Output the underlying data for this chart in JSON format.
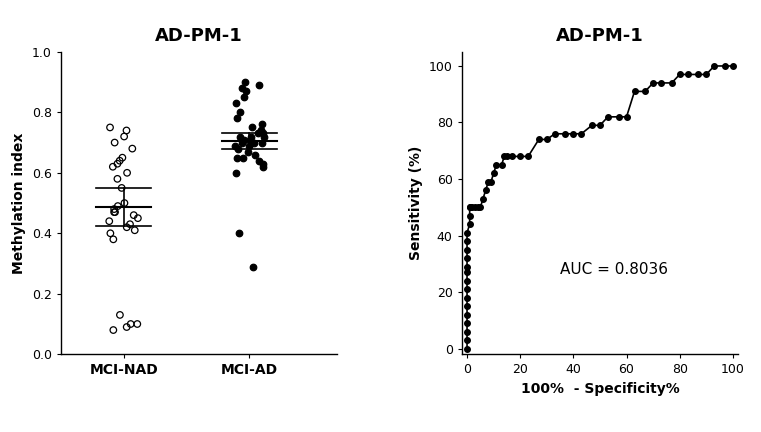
{
  "title_left": "AD-PM-1",
  "title_right": "AD-PM-1",
  "ylabel_left": "Methylation index",
  "xlabel_right": "100%  - Specificity%",
  "ylabel_right": "Sensitivity (%)",
  "auc_text": "AUC = 0.8036",
  "mci_nad": [
    0.13,
    0.1,
    0.1,
    0.09,
    0.08,
    0.38,
    0.4,
    0.41,
    0.42,
    0.43,
    0.44,
    0.45,
    0.46,
    0.47,
    0.47,
    0.48,
    0.49,
    0.5,
    0.55,
    0.58,
    0.6,
    0.62,
    0.63,
    0.64,
    0.65,
    0.68,
    0.7,
    0.72,
    0.74,
    0.75
  ],
  "mci_ad": [
    0.29,
    0.4,
    0.6,
    0.62,
    0.63,
    0.64,
    0.65,
    0.65,
    0.66,
    0.67,
    0.68,
    0.69,
    0.69,
    0.7,
    0.7,
    0.7,
    0.71,
    0.71,
    0.72,
    0.72,
    0.72,
    0.73,
    0.73,
    0.74,
    0.75,
    0.76,
    0.78,
    0.8,
    0.83,
    0.85,
    0.87,
    0.88,
    0.89,
    0.9
  ],
  "mci_nad_mean": 0.487,
  "mci_nad_sd": 0.062,
  "mci_ad_mean": 0.705,
  "mci_ad_sd": 0.025,
  "roc_fpr": [
    0,
    0,
    0,
    0,
    0,
    0,
    0,
    0,
    0,
    0,
    0,
    0,
    0,
    0,
    0,
    1,
    1,
    1,
    1,
    2,
    3,
    4,
    5,
    6,
    7,
    8,
    9,
    10,
    11,
    13,
    14,
    15,
    17,
    20,
    23,
    27,
    30,
    33,
    37,
    40,
    43,
    47,
    50,
    53,
    57,
    60,
    63,
    67,
    70,
    73,
    77,
    80,
    83,
    87,
    90,
    93,
    97,
    100
  ],
  "roc_tpr": [
    0,
    3,
    6,
    9,
    12,
    15,
    18,
    21,
    24,
    27,
    29,
    32,
    35,
    38,
    41,
    44,
    47,
    50,
    50,
    50,
    50,
    50,
    50,
    53,
    56,
    59,
    59,
    62,
    65,
    65,
    68,
    68,
    68,
    68,
    68,
    74,
    74,
    76,
    76,
    76,
    76,
    79,
    79,
    82,
    82,
    82,
    91,
    91,
    94,
    94,
    94,
    97,
    97,
    97,
    97,
    100,
    100,
    100
  ],
  "dot_color_nad": "#000000",
  "dot_color_ad": "#000000",
  "line_color": "#000000",
  "background_color": "#ffffff"
}
